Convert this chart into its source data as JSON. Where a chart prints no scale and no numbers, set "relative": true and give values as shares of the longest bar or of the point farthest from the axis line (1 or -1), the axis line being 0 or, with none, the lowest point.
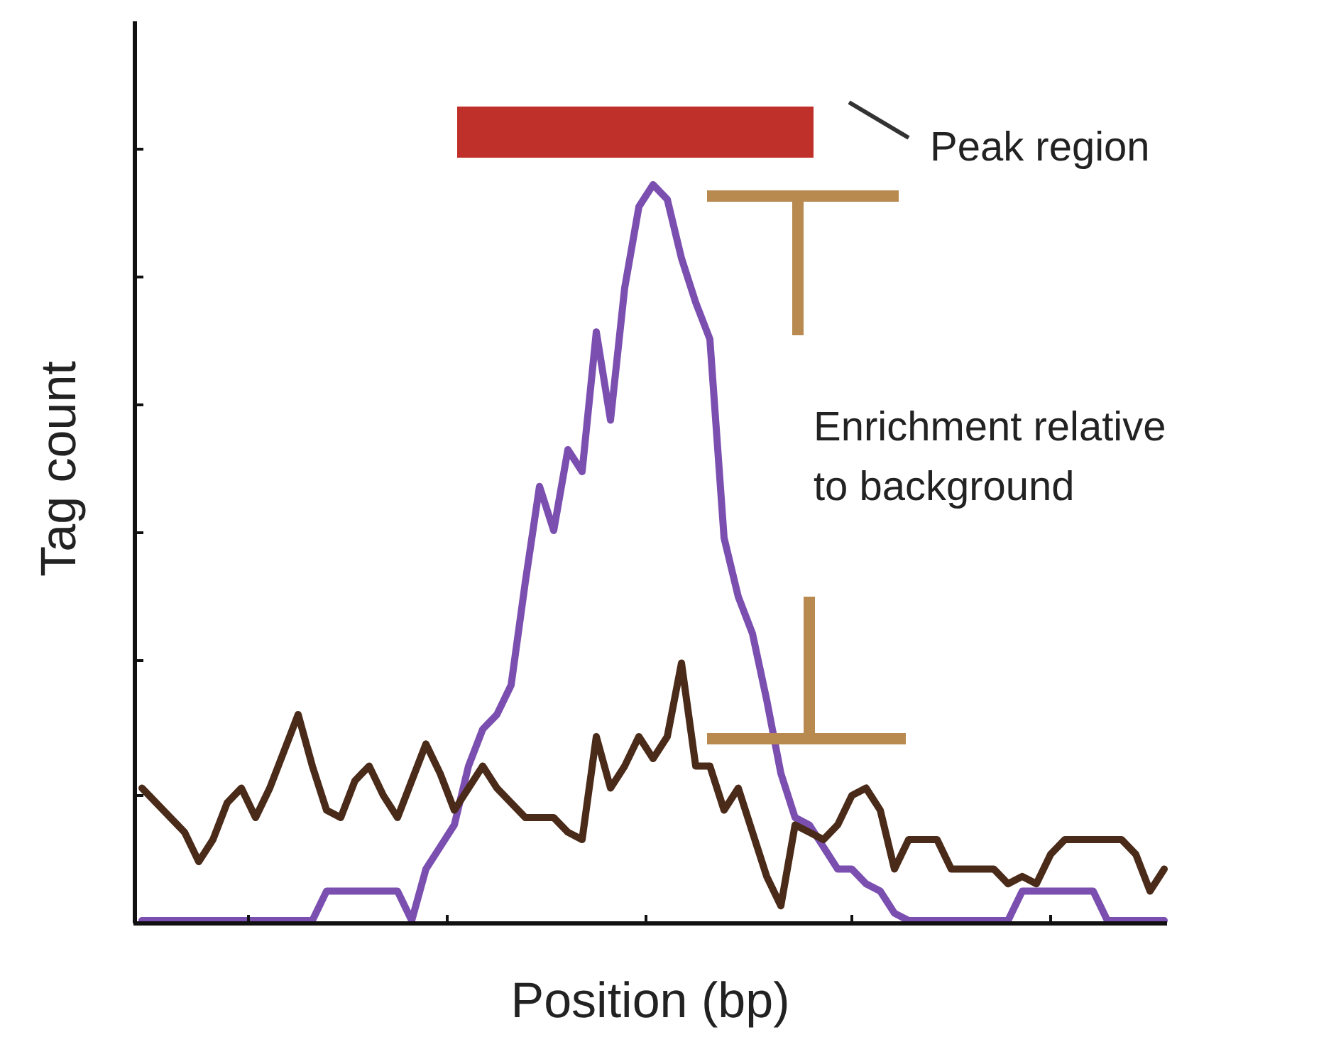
{
  "chart_data": {
    "type": "line",
    "relative": true,
    "xlabel": "Position (bp)",
    "ylabel": "Tag count",
    "annotations": [
      "Peak region",
      "Enrichment relative\nto background"
    ],
    "categories": [
      null,
      null,
      null,
      null,
      null,
      null,
      null,
      null,
      null,
      null,
      null,
      null,
      null,
      null,
      null,
      null,
      null,
      null,
      null,
      null,
      null,
      null,
      null,
      null,
      null,
      null,
      null,
      null,
      null,
      null,
      null,
      null,
      null,
      null,
      null,
      null,
      null,
      null,
      null,
      null,
      null,
      null,
      null,
      null,
      null,
      null,
      null,
      null,
      null,
      null,
      null,
      null,
      null,
      null,
      null,
      null,
      null,
      null,
      null,
      null,
      null,
      null,
      null,
      null,
      null,
      null,
      null,
      null,
      null,
      null,
      null,
      null,
      null
    ],
    "series": [
      {
        "color": "#7b4fb0",
        "values": [
          0,
          0,
          0,
          0,
          0,
          0,
          0,
          0,
          0,
          0,
          0,
          0,
          0,
          0.04,
          0.04,
          0.04,
          0.04,
          0.04,
          0.04,
          0,
          0.07,
          0.1,
          0.13,
          0.21,
          0.26,
          0.28,
          0.32,
          0.46,
          0.59,
          0.53,
          0.64,
          0.61,
          0.8,
          0.68,
          0.86,
          0.97,
          1.0,
          0.98,
          0.9,
          0.84,
          0.79,
          0.52,
          0.44,
          0.39,
          0.3,
          0.2,
          0.14,
          0.13,
          0.1,
          0.07,
          0.07,
          0.05,
          0.04,
          0.01,
          0,
          0,
          0,
          0,
          0,
          0,
          0,
          0,
          0.04,
          0.04,
          0.04,
          0.04,
          0.04,
          0.04,
          0,
          0,
          0,
          0,
          0
        ]
      },
      {
        "color": "#4a2a18",
        "values": [
          0.18,
          0.16,
          0.14,
          0.12,
          0.08,
          0.11,
          0.16,
          0.18,
          0.14,
          0.18,
          0.23,
          0.28,
          0.21,
          0.15,
          0.14,
          0.19,
          0.21,
          0.17,
          0.14,
          0.19,
          0.24,
          0.2,
          0.15,
          0.18,
          0.21,
          0.18,
          0.16,
          0.14,
          0.14,
          0.14,
          0.12,
          0.11,
          0.25,
          0.18,
          0.21,
          0.25,
          0.22,
          0.25,
          0.35,
          0.21,
          0.21,
          0.15,
          0.18,
          0.12,
          0.06,
          0.02,
          0.13,
          0.12,
          0.11,
          0.13,
          0.17,
          0.18,
          0.15,
          0.07,
          0.11,
          0.11,
          0.11,
          0.07,
          0.07,
          0.07,
          0.07,
          0.05,
          0.06,
          0.05,
          0.09,
          0.11,
          0.11,
          0.11,
          0.11,
          0.11,
          0.09,
          0.04,
          0.07
        ]
      }
    ]
  }
}
